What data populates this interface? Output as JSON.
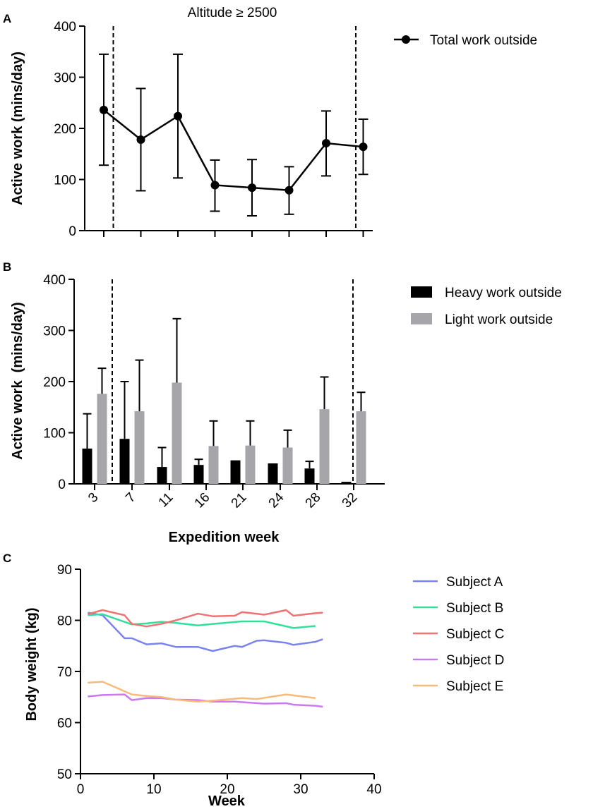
{
  "chart_data": [
    {
      "panel": "A",
      "type": "line",
      "title": "Altitude ≥ 2500",
      "xlabel": "",
      "ylabel": "Active work (mins/day)",
      "ylim": [
        0,
        400
      ],
      "yticks": [
        0,
        100,
        200,
        300,
        400
      ],
      "categories": [
        "3",
        "7",
        "11",
        "16",
        "21",
        "24",
        "28",
        "32"
      ],
      "reference_lines": "vertical dashed lines after week 3 and between weeks 28 and 32",
      "grid": false,
      "legend_placement": "top-right, outside plot",
      "series": [
        {
          "name": "Total work outside",
          "color": "#000000",
          "marker": "filled circle",
          "values": [
            236,
            178,
            224,
            89,
            84,
            79,
            171,
            164
          ],
          "error_upper": [
            345,
            278,
            345,
            138,
            139,
            125,
            234,
            218
          ],
          "error_lower": [
            128,
            78,
            103,
            38,
            29,
            32,
            107,
            110
          ]
        }
      ]
    },
    {
      "panel": "B",
      "type": "bar",
      "title": "",
      "xlabel": "Expedition week",
      "ylabel": "Active work  (mins/day)",
      "ylim": [
        0,
        400
      ],
      "yticks": [
        0,
        100,
        200,
        300,
        400
      ],
      "categories": [
        "3",
        "7",
        "11",
        "16",
        "21",
        "24",
        "28",
        "32"
      ],
      "reference_lines": "vertical dashed lines after week 3 and between weeks 28 and 32",
      "grid": false,
      "legend_placement": "top-right, outside plot",
      "series": [
        {
          "name": "Heavy work outside",
          "color": "#000000",
          "values": [
            69,
            88,
            33,
            37,
            46,
            40,
            30,
            4
          ],
          "error_upper": [
            137,
            200,
            71,
            48,
            46,
            40,
            44,
            4
          ]
        },
        {
          "name": "Light work outside",
          "color": "#a6a6aa",
          "values": [
            176,
            142,
            198,
            74,
            75,
            71,
            146,
            142
          ],
          "error_upper": [
            226,
            242,
            323,
            123,
            123,
            105,
            209,
            179
          ]
        }
      ]
    },
    {
      "panel": "C",
      "type": "line",
      "title": "",
      "xlabel": "Week",
      "ylabel": "Body weight (kg)",
      "xlim": [
        0,
        40
      ],
      "xticks": [
        0,
        10,
        20,
        30,
        40
      ],
      "ylim": [
        50,
        90
      ],
      "yticks": [
        50,
        60,
        70,
        80,
        90
      ],
      "grid": false,
      "legend_placement": "top-right, outside plot",
      "series": [
        {
          "name": "Subject A",
          "color": "#7b84ee",
          "x": [
            1,
            3,
            6,
            7,
            9,
            11,
            13,
            16,
            18,
            21,
            22,
            24,
            25,
            28,
            29,
            32,
            33
          ],
          "y": [
            81.5,
            81,
            76.5,
            76.5,
            75.3,
            75.5,
            74.8,
            74.8,
            74,
            75,
            74.8,
            76,
            76.1,
            75.6,
            75.2,
            75.8,
            76.3
          ]
        },
        {
          "name": "Subject B",
          "color": "#33e09b",
          "x": [
            1,
            3,
            7,
            9,
            11,
            13,
            16,
            18,
            22,
            25,
            29,
            32
          ],
          "y": [
            81,
            81.2,
            79.2,
            79.4,
            79.7,
            79.5,
            79,
            79.3,
            79.8,
            79.8,
            78.5,
            78.9
          ]
        },
        {
          "name": "Subject C",
          "color": "#f07272",
          "x": [
            1,
            3,
            6,
            7,
            9,
            11,
            13,
            16,
            18,
            21,
            22,
            24,
            25,
            28,
            29,
            32,
            33
          ],
          "y": [
            81.2,
            82,
            81,
            79.3,
            78.8,
            79.3,
            80,
            81.3,
            80.8,
            80.9,
            81.6,
            81.3,
            81.1,
            82,
            80.9,
            81.4,
            81.5
          ]
        },
        {
          "name": "Subject D",
          "color": "#cc78f0",
          "x": [
            1,
            3,
            6,
            7,
            9,
            11,
            13,
            16,
            18,
            21,
            22,
            25,
            28,
            29,
            32,
            33
          ],
          "y": [
            65.1,
            65.4,
            65.5,
            64.4,
            64.8,
            64.8,
            64.5,
            64.4,
            64.1,
            64.1,
            64,
            63.7,
            63.8,
            63.5,
            63.3,
            63.1
          ]
        },
        {
          "name": "Subject E",
          "color": "#f8ba7a",
          "x": [
            1,
            3,
            7,
            9,
            11,
            13,
            16,
            18,
            22,
            24,
            28,
            32
          ],
          "y": [
            67.8,
            68,
            65.5,
            65.2,
            65,
            64.5,
            64.1,
            64.3,
            64.8,
            64.6,
            65.5,
            64.8
          ]
        }
      ]
    }
  ]
}
